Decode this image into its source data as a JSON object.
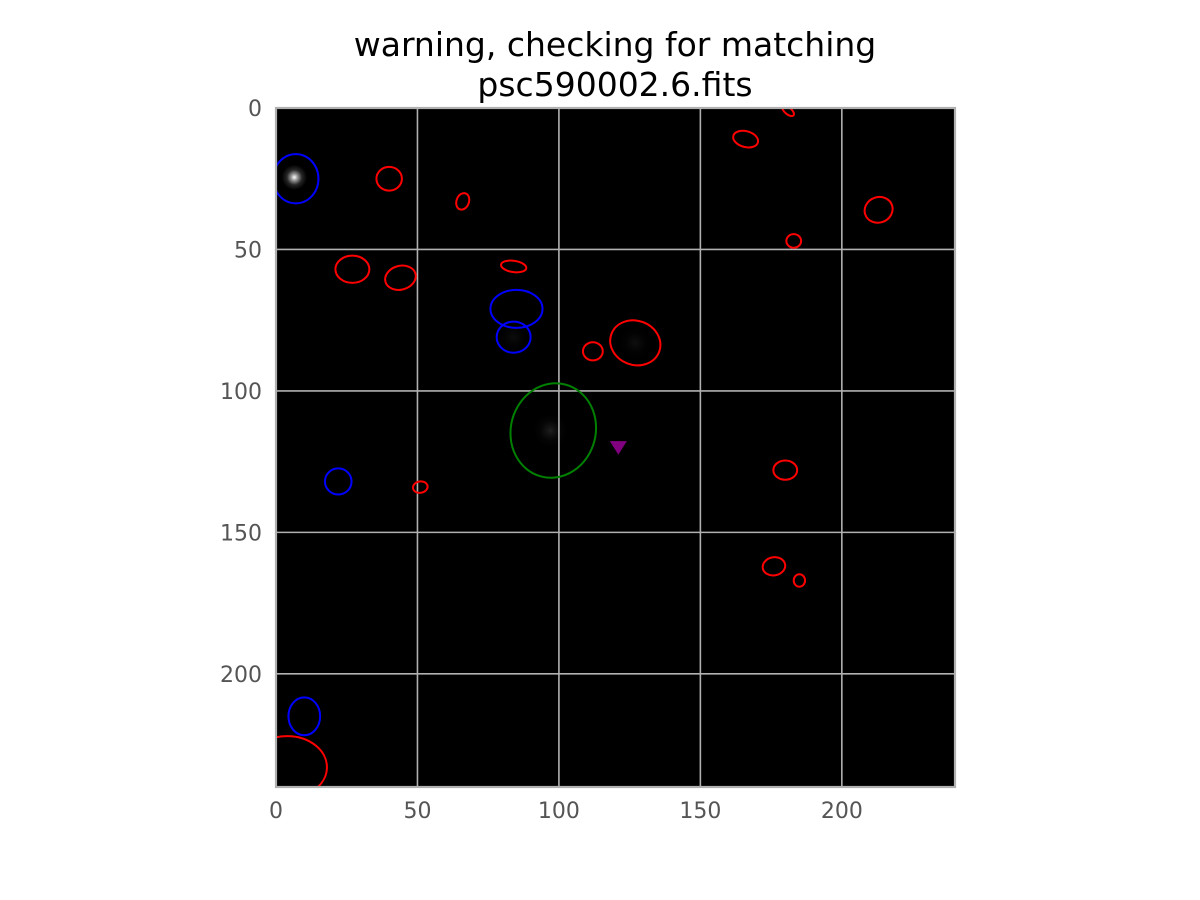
{
  "chart_data": {
    "type": "image",
    "title_lines": [
      "warning, checking for matching",
      "psc590002.6.fits"
    ],
    "xlabel": "",
    "ylabel": "",
    "xlim": [
      0,
      240
    ],
    "ylim": [
      240,
      0
    ],
    "xticks": [
      0,
      50,
      100,
      150,
      200
    ],
    "yticks": [
      0,
      50,
      100,
      150,
      200
    ],
    "x_tick_labels": [
      "0",
      "50",
      "100",
      "150",
      "200"
    ],
    "y_tick_labels": [
      "0",
      "50",
      "100",
      "150",
      "200"
    ],
    "grid": true,
    "background": "#000000",
    "grid_color": "#b0b0b0",
    "colors": {
      "red": "#ff0000",
      "blue": "#0000ff",
      "green": "#008000",
      "purple": "#800080"
    },
    "bright_sources": [
      {
        "x": 6.5,
        "y": 24.5,
        "intensity": 1.0
      },
      {
        "x": 97,
        "y": 114,
        "intensity": 0.12
      },
      {
        "x": 127,
        "y": 83,
        "intensity": 0.06
      },
      {
        "x": 84,
        "y": 81,
        "intensity": 0.05
      }
    ],
    "series": [
      {
        "color": "red",
        "ellipses": [
          {
            "x": 181,
            "y": 1,
            "rx": 2.5,
            "ry": 1.2,
            "angle": 40
          },
          {
            "x": 166,
            "y": 11,
            "rx": 4.5,
            "ry": 2.8,
            "angle": 15
          },
          {
            "x": 40,
            "y": 25,
            "rx": 4.5,
            "ry": 4.2,
            "angle": 0
          },
          {
            "x": 66,
            "y": 33,
            "rx": 2.2,
            "ry": 3.0,
            "angle": 20
          },
          {
            "x": 213,
            "y": 36,
            "rx": 5.0,
            "ry": 4.5,
            "angle": -20
          },
          {
            "x": 183,
            "y": 47,
            "rx": 2.6,
            "ry": 2.4,
            "angle": 0
          },
          {
            "x": 27,
            "y": 57,
            "rx": 6.0,
            "ry": 4.8,
            "angle": 0
          },
          {
            "x": 44,
            "y": 60,
            "rx": 5.5,
            "ry": 4.2,
            "angle": -15
          },
          {
            "x": 84,
            "y": 56,
            "rx": 4.5,
            "ry": 2.0,
            "angle": 8
          },
          {
            "x": 127,
            "y": 83,
            "rx": 9.0,
            "ry": 7.8,
            "angle": 20
          },
          {
            "x": 112,
            "y": 86,
            "rx": 3.5,
            "ry": 3.2,
            "angle": 0
          },
          {
            "x": 180,
            "y": 128,
            "rx": 4.2,
            "ry": 3.4,
            "angle": 0
          },
          {
            "x": 51,
            "y": 134,
            "rx": 2.6,
            "ry": 2.0,
            "angle": -10
          },
          {
            "x": 176,
            "y": 162,
            "rx": 4.0,
            "ry": 3.2,
            "angle": -10
          },
          {
            "x": 185,
            "y": 167,
            "rx": 2.0,
            "ry": 2.2,
            "angle": 0
          },
          {
            "x": 4,
            "y": 233,
            "rx": 14.0,
            "ry": 11.0,
            "angle": 0
          }
        ]
      },
      {
        "color": "blue",
        "ellipses": [
          {
            "x": 7,
            "y": 25,
            "rx": 8.0,
            "ry": 8.7,
            "angle": 0
          },
          {
            "x": 85,
            "y": 71,
            "rx": 9.2,
            "ry": 6.7,
            "angle": 0
          },
          {
            "x": 84,
            "y": 81,
            "rx": 6.0,
            "ry": 5.5,
            "angle": 0
          },
          {
            "x": 22,
            "y": 132,
            "rx": 4.7,
            "ry": 4.6,
            "angle": 0
          },
          {
            "x": 10,
            "y": 215,
            "rx": 5.6,
            "ry": 6.7,
            "angle": 0
          }
        ]
      },
      {
        "color": "green",
        "ellipses": [
          {
            "x": 98,
            "y": 114,
            "rx": 15.0,
            "ry": 16.8,
            "angle": 15
          }
        ]
      },
      {
        "color": "purple",
        "markers": [
          {
            "x": 121,
            "y": 120,
            "shape": "triangle-down"
          }
        ]
      }
    ]
  }
}
